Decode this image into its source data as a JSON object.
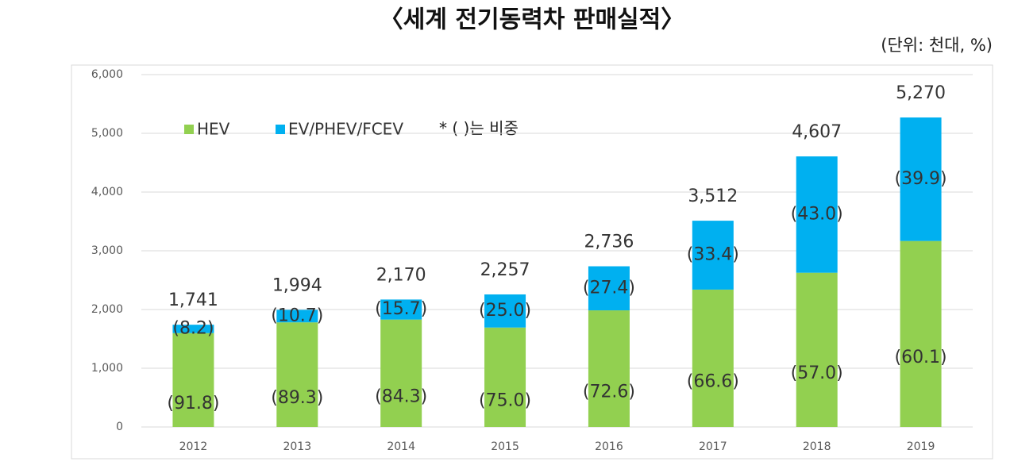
{
  "chart_data": {
    "type": "stacked_bar",
    "title": "〈세계 전기동력차 판매실적〉",
    "unit_note": "(단위: 천대, %)",
    "legend_note": "* ( )는 비중",
    "categories": [
      "2012",
      "2013",
      "2014",
      "2015",
      "2016",
      "2017",
      "2018",
      "2019"
    ],
    "series": [
      {
        "name": "HEV",
        "color": "#92d050",
        "values": [
          1598,
          1781,
          1829,
          1693,
          1986,
          2339,
          2626,
          3167
        ],
        "share_values": [
          91.8,
          89.3,
          84.3,
          75.0,
          72.6,
          66.6,
          57.0,
          60.1
        ],
        "share_labels": [
          "(91.8)",
          "(89.3)",
          "(84.3)",
          "(75.0)",
          "(72.6)",
          "(66.6)",
          "(57.0)",
          "(60.1)"
        ]
      },
      {
        "name": "EV/PHEV/FCEV",
        "color": "#00b0f0",
        "values": [
          143,
          213,
          341,
          564,
          750,
          1173,
          1981,
          2103
        ],
        "share_values": [
          8.2,
          10.7,
          15.7,
          25.0,
          27.4,
          33.4,
          43.0,
          39.9
        ],
        "share_labels": [
          "(8.2)",
          "(10.7)",
          "(15.7)",
          "(25.0)",
          "(27.4)",
          "(33.4)",
          "(43.0)",
          "(39.9)"
        ]
      }
    ],
    "totals": [
      1741,
      1994,
      2170,
      2257,
      2736,
      3512,
      4607,
      5270
    ],
    "total_labels": [
      "1,741",
      "1,994",
      "2,170",
      "2,257",
      "2,736",
      "3,512",
      "4,607",
      "5,270"
    ],
    "ylim": [
      0,
      6000
    ],
    "yticks": [
      0,
      {
        "value": 1000,
        "label": "1,000"
      },
      {
        "value": 2000,
        "label": "2,000"
      },
      {
        "value": 3000,
        "label": "3,000"
      },
      {
        "value": 4000,
        "label": "4,000"
      },
      {
        "value": 5000,
        "label": "5,000"
      },
      {
        "value": 6000,
        "label": "6,000"
      }
    ],
    "grid": true
  }
}
